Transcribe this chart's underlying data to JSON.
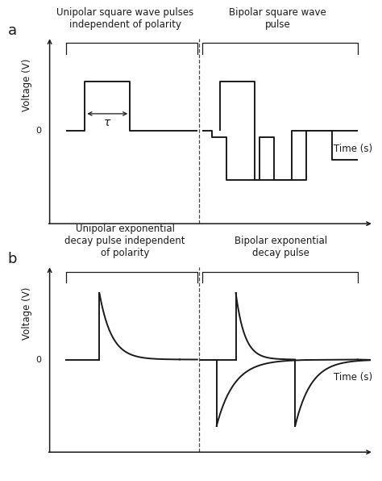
{
  "fig_width": 4.74,
  "fig_height": 5.96,
  "dpi": 100,
  "bg_color": "#ffffff",
  "label_a": "a",
  "label_b": "b",
  "title_a1": "Unipolar square wave pulses\nindependent of polarity",
  "title_a2": "Bipolar square wave\npulse",
  "title_b1": "Unipolar exponential\ndecay pulse independent\nof polarity",
  "title_b2": "Bipolar exponential\ndecay pulse",
  "ylabel": "Voltage (V)",
  "xlabel": "Time (s)",
  "line_color": "#1a1a1a",
  "tau_label": "τ",
  "font_size_title": 8.5,
  "font_size_label": 8.5,
  "font_size_zero": 8,
  "font_size_ab": 13
}
